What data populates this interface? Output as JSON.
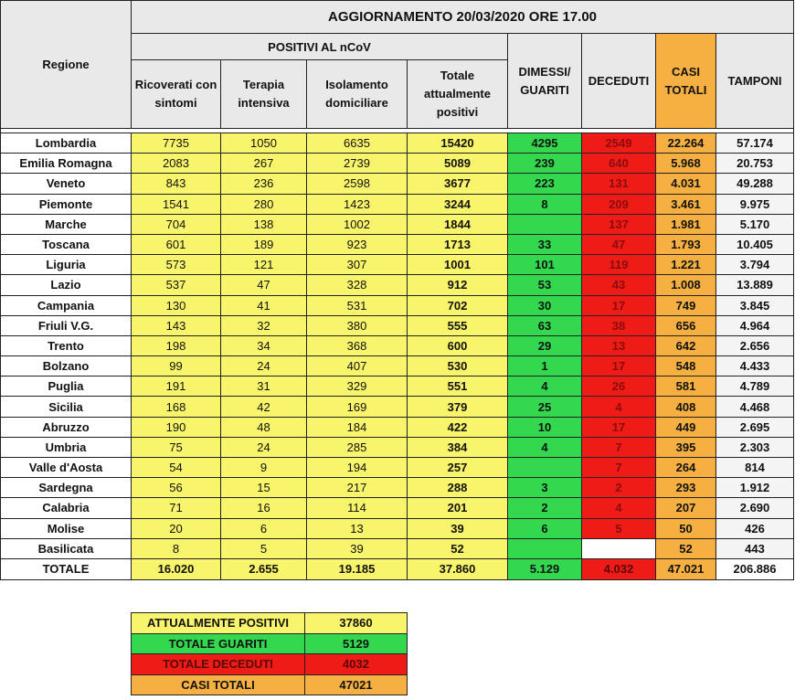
{
  "header": {
    "title": "AGGIORNAMENTO 20/03/2020 ORE 17.00",
    "regione": "Regione",
    "positivi_group": "POSITIVI AL nCoV",
    "ricoverati": "Ricoverati con sintomi",
    "terapia": "Terapia intensiva",
    "isolamento": "Isolamento domiciliare",
    "totale_positivi": "Totale attualmente positivi",
    "dimessi": "DIMESSI/ GUARITI",
    "deceduti": "DECEDUTI",
    "casi": "CASI TOTALI",
    "tamponi": "TAMPONI"
  },
  "rows": [
    {
      "regione": "Lombardia",
      "ricoverati": "7735",
      "terapia": "1050",
      "isolamento": "6635",
      "totale": "15420",
      "dimessi": "4295",
      "deceduti": "2549",
      "casi": "22.264",
      "tamponi": "57.174"
    },
    {
      "regione": "Emilia Romagna",
      "ricoverati": "2083",
      "terapia": "267",
      "isolamento": "2739",
      "totale": "5089",
      "dimessi": "239",
      "deceduti": "640",
      "casi": "5.968",
      "tamponi": "20.753"
    },
    {
      "regione": "Veneto",
      "ricoverati": "843",
      "terapia": "236",
      "isolamento": "2598",
      "totale": "3677",
      "dimessi": "223",
      "deceduti": "131",
      "casi": "4.031",
      "tamponi": "49.288"
    },
    {
      "regione": "Piemonte",
      "ricoverati": "1541",
      "terapia": "280",
      "isolamento": "1423",
      "totale": "3244",
      "dimessi": "8",
      "deceduti": "209",
      "casi": "3.461",
      "tamponi": "9.975"
    },
    {
      "regione": "Marche",
      "ricoverati": "704",
      "terapia": "138",
      "isolamento": "1002",
      "totale": "1844",
      "dimessi": "",
      "deceduti": "137",
      "casi": "1.981",
      "tamponi": "5.170"
    },
    {
      "regione": "Toscana",
      "ricoverati": "601",
      "terapia": "189",
      "isolamento": "923",
      "totale": "1713",
      "dimessi": "33",
      "deceduti": "47",
      "casi": "1.793",
      "tamponi": "10.405"
    },
    {
      "regione": "Liguria",
      "ricoverati": "573",
      "terapia": "121",
      "isolamento": "307",
      "totale": "1001",
      "dimessi": "101",
      "deceduti": "119",
      "casi": "1.221",
      "tamponi": "3.794"
    },
    {
      "regione": "Lazio",
      "ricoverati": "537",
      "terapia": "47",
      "isolamento": "328",
      "totale": "912",
      "dimessi": "53",
      "deceduti": "43",
      "casi": "1.008",
      "tamponi": "13.889"
    },
    {
      "regione": "Campania",
      "ricoverati": "130",
      "terapia": "41",
      "isolamento": "531",
      "totale": "702",
      "dimessi": "30",
      "deceduti": "17",
      "casi": "749",
      "tamponi": "3.845"
    },
    {
      "regione": "Friuli V.G.",
      "ricoverati": "143",
      "terapia": "32",
      "isolamento": "380",
      "totale": "555",
      "dimessi": "63",
      "deceduti": "38",
      "casi": "656",
      "tamponi": "4.964"
    },
    {
      "regione": "Trento",
      "ricoverati": "198",
      "terapia": "34",
      "isolamento": "368",
      "totale": "600",
      "dimessi": "29",
      "deceduti": "13",
      "casi": "642",
      "tamponi": "2.656"
    },
    {
      "regione": "Bolzano",
      "ricoverati": "99",
      "terapia": "24",
      "isolamento": "407",
      "totale": "530",
      "dimessi": "1",
      "deceduti": "17",
      "casi": "548",
      "tamponi": "4.433"
    },
    {
      "regione": "Puglia",
      "ricoverati": "191",
      "terapia": "31",
      "isolamento": "329",
      "totale": "551",
      "dimessi": "4",
      "deceduti": "26",
      "casi": "581",
      "tamponi": "4.789"
    },
    {
      "regione": "Sicilia",
      "ricoverati": "168",
      "terapia": "42",
      "isolamento": "169",
      "totale": "379",
      "dimessi": "25",
      "deceduti": "4",
      "casi": "408",
      "tamponi": "4.468"
    },
    {
      "regione": "Abruzzo",
      "ricoverati": "190",
      "terapia": "48",
      "isolamento": "184",
      "totale": "422",
      "dimessi": "10",
      "deceduti": "17",
      "casi": "449",
      "tamponi": "2.695"
    },
    {
      "regione": "Umbria",
      "ricoverati": "75",
      "terapia": "24",
      "isolamento": "285",
      "totale": "384",
      "dimessi": "4",
      "deceduti": "7",
      "casi": "395",
      "tamponi": "2.303"
    },
    {
      "regione": "Valle d'Aosta",
      "ricoverati": "54",
      "terapia": "9",
      "isolamento": "194",
      "totale": "257",
      "dimessi": "",
      "deceduti": "7",
      "casi": "264",
      "tamponi": "814"
    },
    {
      "regione": "Sardegna",
      "ricoverati": "56",
      "terapia": "15",
      "isolamento": "217",
      "totale": "288",
      "dimessi": "3",
      "deceduti": "2",
      "casi": "293",
      "tamponi": "1.912"
    },
    {
      "regione": "Calabria",
      "ricoverati": "71",
      "terapia": "16",
      "isolamento": "114",
      "totale": "201",
      "dimessi": "2",
      "deceduti": "4",
      "casi": "207",
      "tamponi": "2.690"
    },
    {
      "regione": "Molise",
      "ricoverati": "20",
      "terapia": "6",
      "isolamento": "13",
      "totale": "39",
      "dimessi": "6",
      "deceduti": "5",
      "casi": "50",
      "tamponi": "426"
    },
    {
      "regione": "Basilicata",
      "ricoverati": "8",
      "terapia": "5",
      "isolamento": "39",
      "totale": "52",
      "dimessi": "",
      "deceduti": "",
      "casi": "52",
      "tamponi": "443"
    }
  ],
  "total": {
    "regione": "TOTALE",
    "ricoverati": "16.020",
    "terapia": "2.655",
    "isolamento": "19.185",
    "totale": "37.860",
    "dimessi": "5.129",
    "deceduti": "4.032",
    "casi": "47.021",
    "tamponi": "206.886"
  },
  "summary": [
    {
      "label": "ATTUALMENTE POSITIVI",
      "value": "37860",
      "color": "yellow"
    },
    {
      "label": "TOTALE GUARITI",
      "value": "5129",
      "color": "green"
    },
    {
      "label": "TOTALE DECEDUTI",
      "value": "4032",
      "color": "red"
    },
    {
      "label": "CASI TOTALI",
      "value": "47021",
      "color": "orange"
    }
  ],
  "colors": {
    "yellow": "#f8f46b",
    "green": "#33d84f",
    "red": "#ef1b16",
    "orange": "#f6b042",
    "header_gray": "#e9e9e9"
  }
}
